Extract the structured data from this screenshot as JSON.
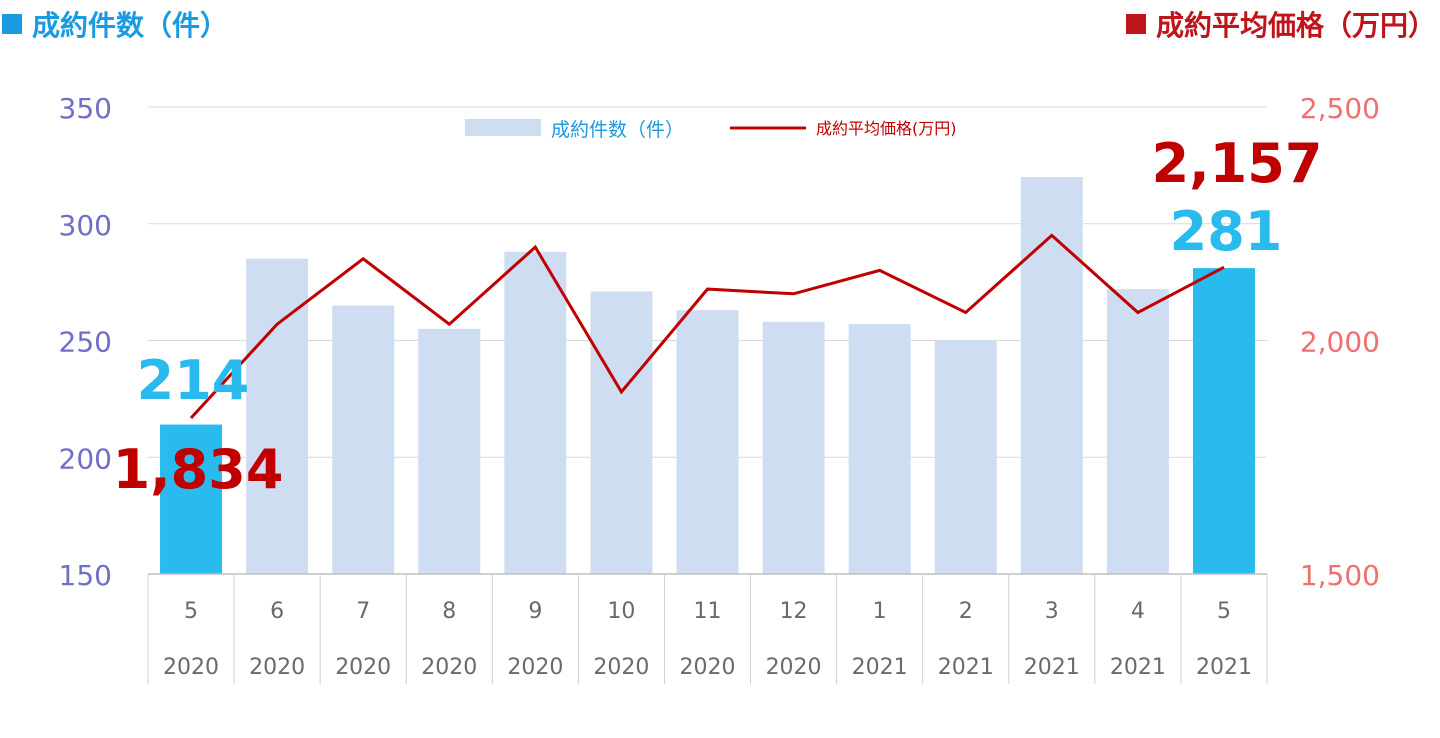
{
  "header": {
    "left_title": "成約件数（件）",
    "right_title": "成約平均価格（万円）"
  },
  "colors": {
    "bar_normal": "#cfddf2",
    "bar_highlight": "#29bbee",
    "line": "#c00000",
    "left_axis": "#6f6fc8",
    "right_axis": "#f07070",
    "header_left": "#1a9ae0",
    "header_right": "#c0141c"
  },
  "chart_data": {
    "type": "bar",
    "categories": [
      "5",
      "6",
      "7",
      "8",
      "9",
      "10",
      "11",
      "12",
      "1",
      "2",
      "3",
      "4",
      "5"
    ],
    "years": [
      "2020",
      "2020",
      "2020",
      "2020",
      "2020",
      "2020",
      "2020",
      "2020",
      "2021",
      "2021",
      "2021",
      "2021",
      "2021"
    ],
    "series": [
      {
        "name": "成約件数（件）",
        "type": "bar",
        "axis": "left",
        "values": [
          214,
          285,
          265,
          255,
          288,
          271,
          263,
          258,
          257,
          250,
          320,
          272,
          281
        ],
        "highlight": [
          0,
          12
        ]
      },
      {
        "name": "成約平均価格(万円)",
        "type": "line",
        "axis": "right",
        "values": [
          1834,
          2035,
          2175,
          2035,
          2200,
          1890,
          2110,
          2100,
          2150,
          2060,
          2225,
          2060,
          2157
        ]
      }
    ],
    "y_left": {
      "ticks": [
        "350",
        "300",
        "250",
        "200",
        "150"
      ],
      "ylim": [
        150,
        350
      ]
    },
    "y_right": {
      "ticks": [
        "2,500",
        "2,000",
        "1,500"
      ],
      "ylim": [
        1500,
        2500
      ]
    },
    "gridlines": true,
    "legend_position": "top-center",
    "annotations": {
      "first_count": "214",
      "first_price": "1,834",
      "last_count": "281",
      "last_price": "2,157"
    }
  }
}
